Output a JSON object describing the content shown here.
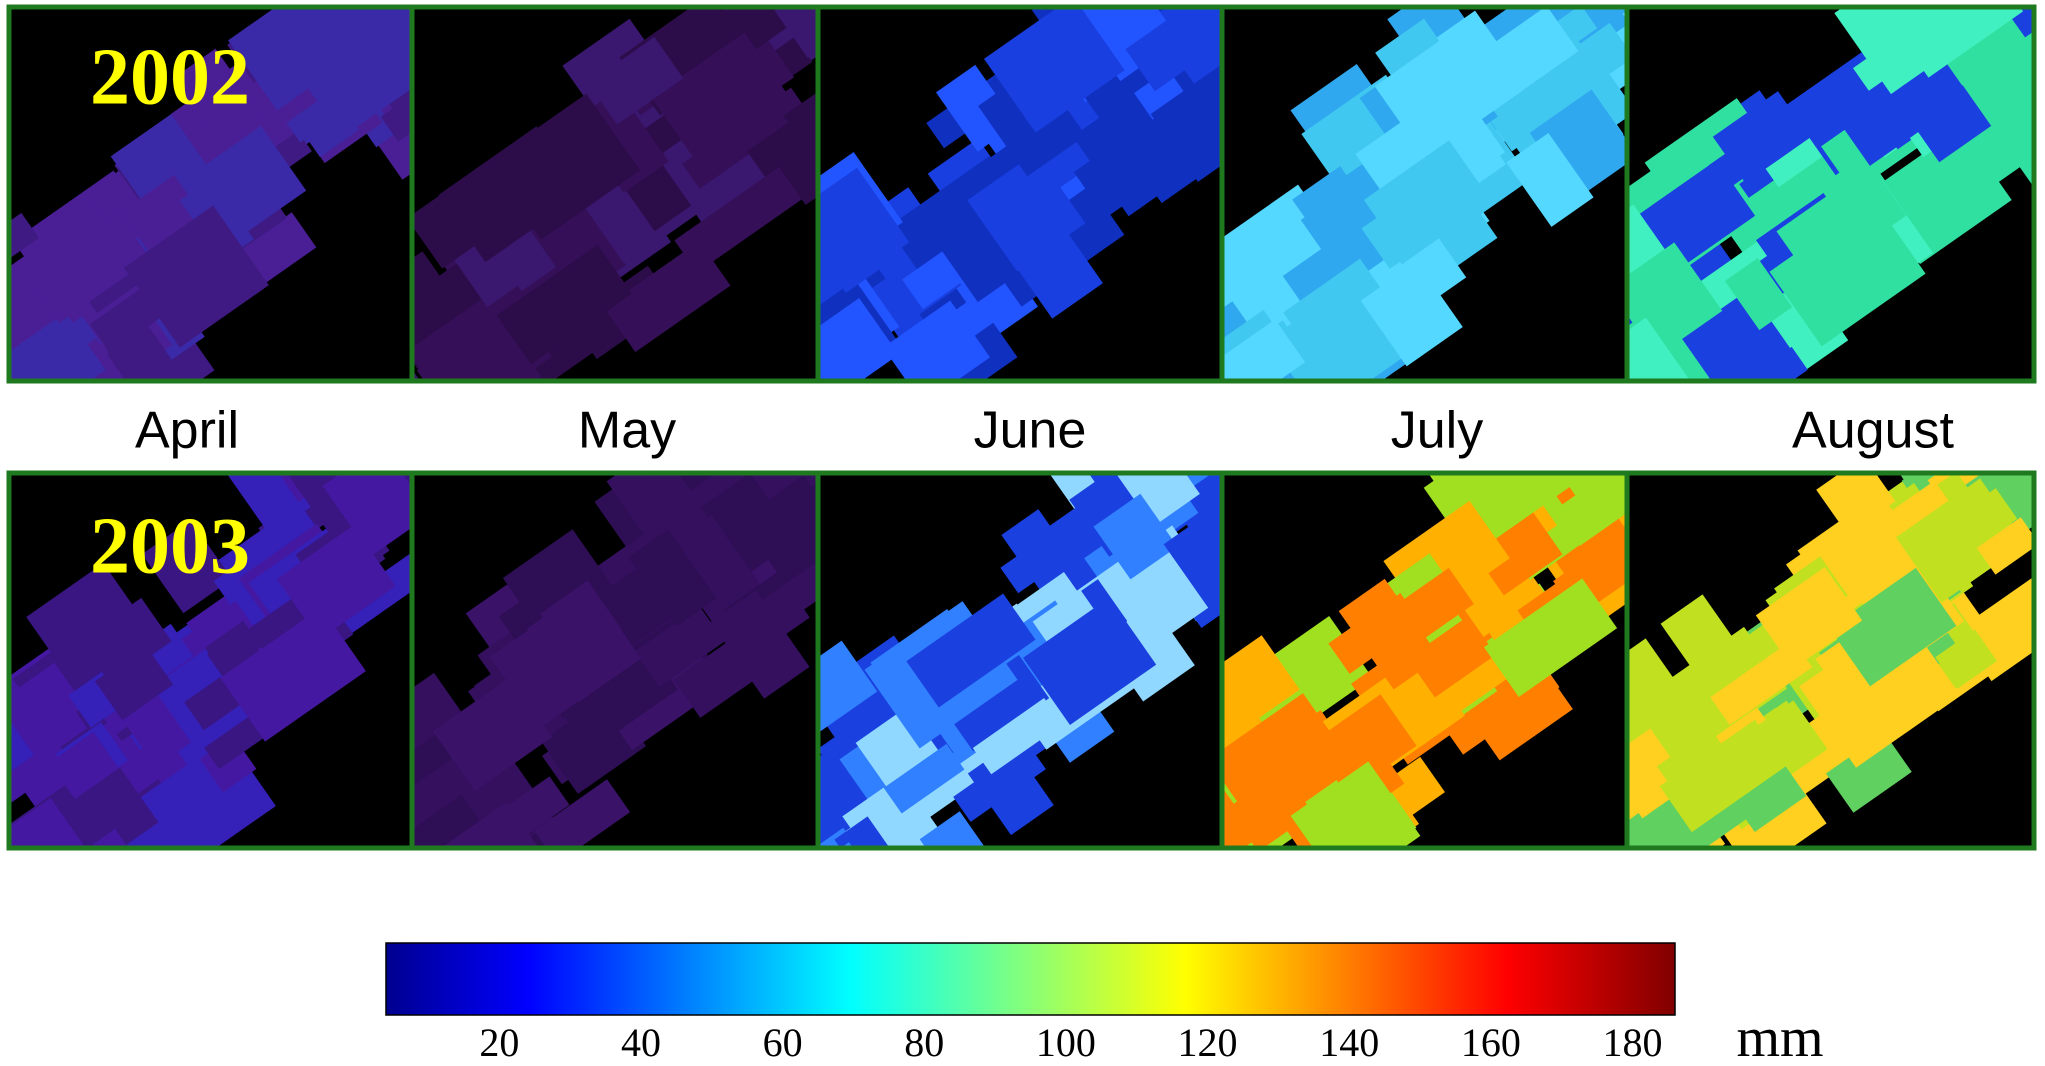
{
  "rows": [
    {
      "label": "2002"
    },
    {
      "label": "2003"
    }
  ],
  "months": [
    "April",
    "May",
    "June",
    "July",
    "August"
  ],
  "colorbar": {
    "lim": [
      4,
      186
    ],
    "ticks": [
      20,
      40,
      60,
      80,
      100,
      120,
      140,
      160,
      180
    ],
    "unit": "mm"
  }
}
